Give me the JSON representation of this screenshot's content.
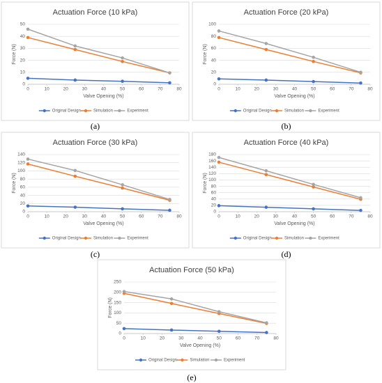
{
  "chart_data": [
    {
      "type": "line",
      "title": "Actuation Force (10 kPa)",
      "caption": "(a)",
      "xlabel": "Valve Opening (%)",
      "ylabel": "Force (N)",
      "x": [
        0,
        25,
        50,
        75
      ],
      "xlim": [
        0,
        80
      ],
      "xticks": [
        0,
        10,
        20,
        30,
        40,
        50,
        60,
        70,
        80
      ],
      "ylim": [
        0,
        50
      ],
      "yticks": [
        0,
        10,
        20,
        30,
        40,
        50
      ],
      "grid": true,
      "legend": "bottom",
      "series": [
        {
          "name": "Original Design",
          "color": "#4472c4",
          "values": [
            5,
            3.5,
            2.5,
            1.2
          ]
        },
        {
          "name": "Simulation",
          "color": "#ed7d31",
          "values": [
            39,
            29,
            19,
            9.5
          ]
        },
        {
          "name": "Experiment",
          "color": "#a5a5a5",
          "values": [
            46,
            32,
            22,
            9.5
          ]
        }
      ]
    },
    {
      "type": "line",
      "title": "Actuation Force (20 kPa)",
      "caption": "(b)",
      "xlabel": "Valve Opening (%)",
      "ylabel": "Force (N)",
      "x": [
        0,
        25,
        50,
        75
      ],
      "xlim": [
        0,
        80
      ],
      "xticks": [
        0,
        10,
        20,
        30,
        40,
        50,
        60,
        70,
        80
      ],
      "ylim": [
        0,
        100
      ],
      "yticks": [
        0,
        20,
        40,
        60,
        80,
        100
      ],
      "grid": true,
      "legend": "bottom",
      "series": [
        {
          "name": "Original Design",
          "color": "#4472c4",
          "values": [
            9,
            7,
            4.5,
            2
          ]
        },
        {
          "name": "Simulation",
          "color": "#ed7d31",
          "values": [
            78,
            58,
            38,
            19
          ]
        },
        {
          "name": "Experiment",
          "color": "#a5a5a5",
          "values": [
            89,
            68,
            45,
            20
          ]
        }
      ]
    },
    {
      "type": "line",
      "title": "Actuation Force (30 kPa)",
      "caption": "(c)",
      "xlabel": "Valve Opening (%)",
      "ylabel": "Force (N)",
      "x": [
        0,
        25,
        50,
        75
      ],
      "xlim": [
        0,
        80
      ],
      "xticks": [
        0,
        10,
        20,
        30,
        40,
        50,
        60,
        70,
        80
      ],
      "ylim": [
        0,
        140
      ],
      "yticks": [
        0,
        20,
        40,
        60,
        80,
        100,
        120,
        140
      ],
      "grid": true,
      "legend": "bottom",
      "series": [
        {
          "name": "Original Design",
          "color": "#4472c4",
          "values": [
            14,
            11,
            7,
            3.5
          ]
        },
        {
          "name": "Simulation",
          "color": "#ed7d31",
          "values": [
            117,
            87,
            58,
            28
          ]
        },
        {
          "name": "Experiment",
          "color": "#a5a5a5",
          "values": [
            129,
            101,
            66,
            30
          ]
        }
      ]
    },
    {
      "type": "line",
      "title": "Actuation Force (40 kPa)",
      "caption": "(d)",
      "xlabel": "Valve Opening (%)",
      "ylabel": "Force (N)",
      "x": [
        0,
        25,
        50,
        75
      ],
      "xlim": [
        0,
        80
      ],
      "xticks": [
        0,
        10,
        20,
        30,
        40,
        50,
        60,
        70,
        80
      ],
      "ylim": [
        0,
        180
      ],
      "yticks": [
        0,
        20,
        40,
        60,
        80,
        100,
        120,
        140,
        160,
        180
      ],
      "grid": true,
      "legend": "bottom",
      "series": [
        {
          "name": "Original Design",
          "color": "#4472c4",
          "values": [
            19,
            14,
            9,
            4
          ]
        },
        {
          "name": "Simulation",
          "color": "#ed7d31",
          "values": [
            156,
            117,
            78,
            39
          ]
        },
        {
          "name": "Experiment",
          "color": "#a5a5a5",
          "values": [
            171,
            129,
            86,
            44
          ]
        }
      ]
    },
    {
      "type": "line",
      "title": "Actuation Force (50 kPa)",
      "caption": "(e)",
      "xlabel": "Valve Opening (%)",
      "ylabel": "Force (N)",
      "x": [
        0,
        25,
        50,
        75
      ],
      "xlim": [
        0,
        80
      ],
      "xticks": [
        0,
        10,
        20,
        30,
        40,
        50,
        60,
        70,
        80
      ],
      "ylim": [
        0,
        250
      ],
      "yticks": [
        0,
        50,
        100,
        150,
        200,
        250
      ],
      "grid": true,
      "legend": "bottom",
      "series": [
        {
          "name": "Original Design",
          "color": "#4472c4",
          "values": [
            24,
            17,
            11,
            5
          ]
        },
        {
          "name": "Simulation",
          "color": "#ed7d31",
          "values": [
            195,
            146,
            97,
            49
          ]
        },
        {
          "name": "Experiment",
          "color": "#a5a5a5",
          "values": [
            204,
            168,
            106,
            52
          ]
        }
      ]
    }
  ]
}
